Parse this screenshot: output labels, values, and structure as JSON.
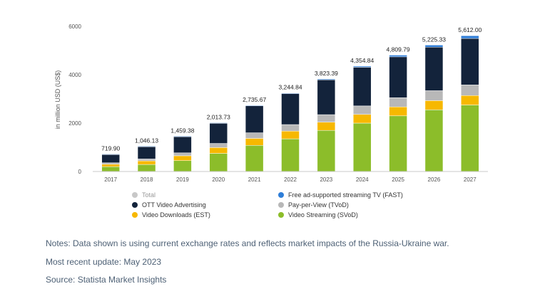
{
  "chart_data": {
    "type": "bar",
    "stacked": true,
    "categories": [
      "2017",
      "2018",
      "2019",
      "2020",
      "2021",
      "2022",
      "2023",
      "2024",
      "2025",
      "2026",
      "2027"
    ],
    "ylabel": "in million USD (US$)",
    "ylim": [
      0,
      6000
    ],
    "yticks": [
      0,
      2000,
      4000,
      6000
    ],
    "grid": false,
    "legend_position": "bottom",
    "totals": [
      719.9,
      1046.13,
      1459.38,
      2013.73,
      2735.67,
      3244.84,
      3823.39,
      4354.84,
      4809.79,
      5225.33,
      5612.0
    ],
    "total_labels": [
      "719.90",
      "1,046.13",
      "1,459.38",
      "2,013.73",
      "2,735.67",
      "3,244.84",
      "3,823.39",
      "4,354.84",
      "4,809.79",
      "5,225.33",
      "5,612.00"
    ],
    "series": [
      {
        "name": "Video Streaming (SVoD)",
        "color": "#8cbd2a",
        "values": [
          200,
          290,
          450,
          750,
          1080,
          1350,
          1700,
          2000,
          2300,
          2550,
          2750
        ]
      },
      {
        "name": "Video Downloads (EST)",
        "color": "#f7b800",
        "values": [
          100,
          150,
          200,
          240,
          290,
          320,
          340,
          360,
          370,
          380,
          390
        ]
      },
      {
        "name": "Pay-per-View (TVoD)",
        "color": "#b8b8b8",
        "values": [
          60,
          80,
          120,
          170,
          230,
          270,
          310,
          350,
          380,
          410,
          440
        ]
      },
      {
        "name": "OTT Video Advertising",
        "color": "#13233b",
        "values": [
          355,
          520,
          680,
          840,
          1120,
          1280,
          1440,
          1600,
          1690,
          1800,
          1920
        ]
      },
      {
        "name": "Free ad-supported streaming TV (FAST)",
        "color": "#2f7ed8",
        "values": [
          4.9,
          6.13,
          9.38,
          13.73,
          15.67,
          24.84,
          33.39,
          44.84,
          69.79,
          85.33,
          112
        ]
      }
    ]
  },
  "legend": {
    "items": [
      {
        "label": "Total",
        "color": "#c8c8c8",
        "muted": true
      },
      {
        "label": "Free ad-supported streaming TV (FAST)",
        "color": "#2f7ed8"
      },
      {
        "label": "OTT Video Advertising",
        "color": "#13233b"
      },
      {
        "label": "Pay-per-View (TVoD)",
        "color": "#b8b8b8"
      },
      {
        "label": "Video Downloads (EST)",
        "color": "#f7b800"
      },
      {
        "label": "Video Streaming (SVoD)",
        "color": "#8cbd2a"
      }
    ]
  },
  "footer": {
    "notes": "Notes: Data shown is using current exchange rates and reflects market impacts of the Russia-Ukraine war.",
    "update": "Most recent update: May 2023",
    "source": "Source: Statista Market Insights"
  }
}
